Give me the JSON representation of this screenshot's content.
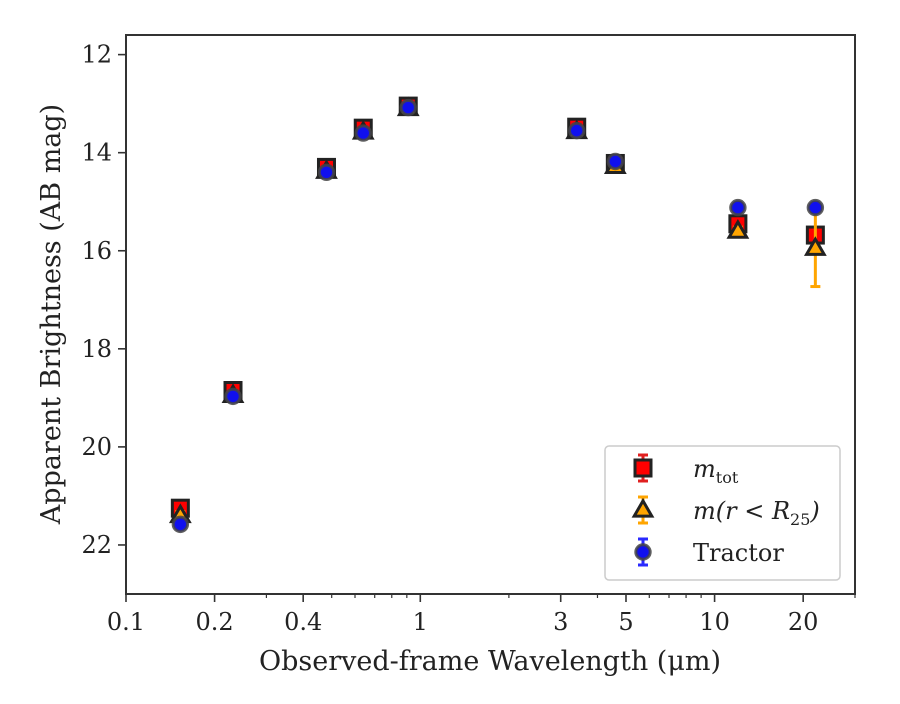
{
  "chart_data": {
    "type": "scatter",
    "title": "",
    "xlabel": "Observed-frame Wavelength (μm)",
    "ylabel": "Apparent Brightness (AB mag)",
    "xscale": "log",
    "xlim": [
      0.1,
      30
    ],
    "ylim": [
      23.0,
      11.6
    ],
    "y_inverted": true,
    "xticks": [
      0.1,
      0.2,
      0.4,
      1,
      3,
      5,
      10,
      20
    ],
    "xtick_labels": [
      "0.1",
      "0.2",
      "0.4",
      "1",
      "3",
      "5",
      "10",
      "20"
    ],
    "yticks": [
      12,
      14,
      16,
      18,
      20,
      22
    ],
    "ytick_labels": [
      "12",
      "14",
      "16",
      "18",
      "20",
      "22"
    ],
    "grid": false,
    "legend_position": "lower-right",
    "series": [
      {
        "name": "m_tot",
        "legend_label": "m_tot",
        "marker": "square",
        "color": "#ff0000",
        "edge_color": "#222222",
        "errbar_color": "#e02020",
        "points": [
          {
            "x": 0.153,
            "y": 21.25,
            "err": 0.1
          },
          {
            "x": 0.231,
            "y": 18.85,
            "err": 0.08
          },
          {
            "x": 0.48,
            "y": 14.3,
            "err": 0.08
          },
          {
            "x": 0.64,
            "y": 13.5,
            "err": 0.08
          },
          {
            "x": 0.91,
            "y": 13.05,
            "err": 0.05
          },
          {
            "x": 3.4,
            "y": 13.48,
            "err": 0.05
          },
          {
            "x": 4.6,
            "y": 14.22,
            "err": 0.05
          },
          {
            "x": 12.0,
            "y": 15.45,
            "err": 0.05
          },
          {
            "x": 22.0,
            "y": 15.68,
            "err": 0.1
          }
        ]
      },
      {
        "name": "m(r<R25)",
        "legend_label": "m(r < R_25)",
        "marker": "triangle",
        "color": "#ffa500",
        "edge_color": "#222222",
        "errbar_color": "#ffa500",
        "points": [
          {
            "x": 0.153,
            "y": 21.4,
            "err": 0.08
          },
          {
            "x": 0.231,
            "y": 18.95,
            "err": 0.06
          },
          {
            "x": 0.48,
            "y": 14.38,
            "err": 0.05
          },
          {
            "x": 0.64,
            "y": 13.58,
            "err": 0.05
          },
          {
            "x": 0.91,
            "y": 13.1,
            "err": 0.04
          },
          {
            "x": 3.4,
            "y": 13.57,
            "err": 0.04
          },
          {
            "x": 4.6,
            "y": 14.28,
            "err": 0.08
          },
          {
            "x": 12.0,
            "y": 15.6,
            "err": 0.08
          },
          {
            "x": 22.0,
            "y": 15.95,
            "err": 0.78
          }
        ]
      },
      {
        "name": "Tractor",
        "legend_label": "Tractor",
        "marker": "circle",
        "color": "#1010ee",
        "edge_color": "#444444",
        "errbar_color": "#2a2aff",
        "points": [
          {
            "x": 0.153,
            "y": 21.58,
            "err": 0.05
          },
          {
            "x": 0.231,
            "y": 18.97,
            "err": 0.04
          },
          {
            "x": 0.48,
            "y": 14.4,
            "err": 0.03
          },
          {
            "x": 0.64,
            "y": 13.6,
            "err": 0.03
          },
          {
            "x": 0.91,
            "y": 13.08,
            "err": 0.03
          },
          {
            "x": 3.4,
            "y": 13.55,
            "err": 0.03
          },
          {
            "x": 4.6,
            "y": 14.18,
            "err": 0.03
          },
          {
            "x": 12.0,
            "y": 15.12,
            "err": 0.04
          },
          {
            "x": 22.0,
            "y": 15.12,
            "err": 0.04
          }
        ]
      }
    ]
  }
}
